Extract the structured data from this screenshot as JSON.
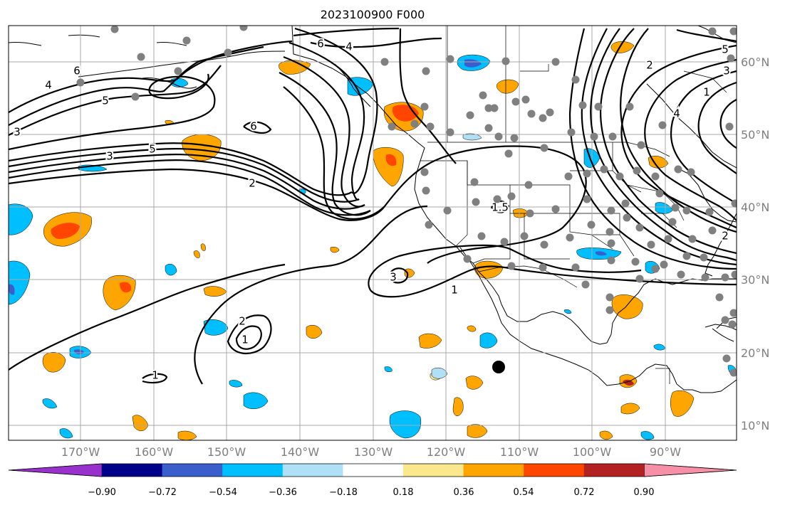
{
  "title": "2023100900 F000",
  "lon_labels": [
    "170°W",
    "160°W",
    "150°W",
    "140°W",
    "130°W",
    "120°W",
    "110°W",
    "100°W",
    "90°W"
  ],
  "lat_labels": [
    "60°N",
    "50°N",
    "40°N",
    "30°N",
    "20°N",
    "10°N"
  ],
  "colorbar": {
    "colors": [
      "#9932cc",
      "#00008b",
      "#3a5fcd",
      "#00bfff",
      "#b0e0f6",
      "#ffffff",
      "#fbe78c",
      "#ffa500",
      "#ff4500",
      "#b22222",
      "#f78fa7"
    ],
    "tick_labels": [
      "−0.90",
      "−0.72",
      "−0.54",
      "−0.36",
      "−0.18",
      "0.18",
      "0.36",
      "0.54",
      "0.72",
      "0.90"
    ]
  },
  "contour_labels": [
    "6",
    "4",
    "5",
    "3",
    "6",
    "4",
    "6",
    "5",
    "3",
    "2",
    "1",
    "3",
    "1",
    "2",
    "1",
    "1.5",
    "2",
    "4",
    "3",
    "5",
    "2",
    "1"
  ],
  "marker_color": "#808080"
}
